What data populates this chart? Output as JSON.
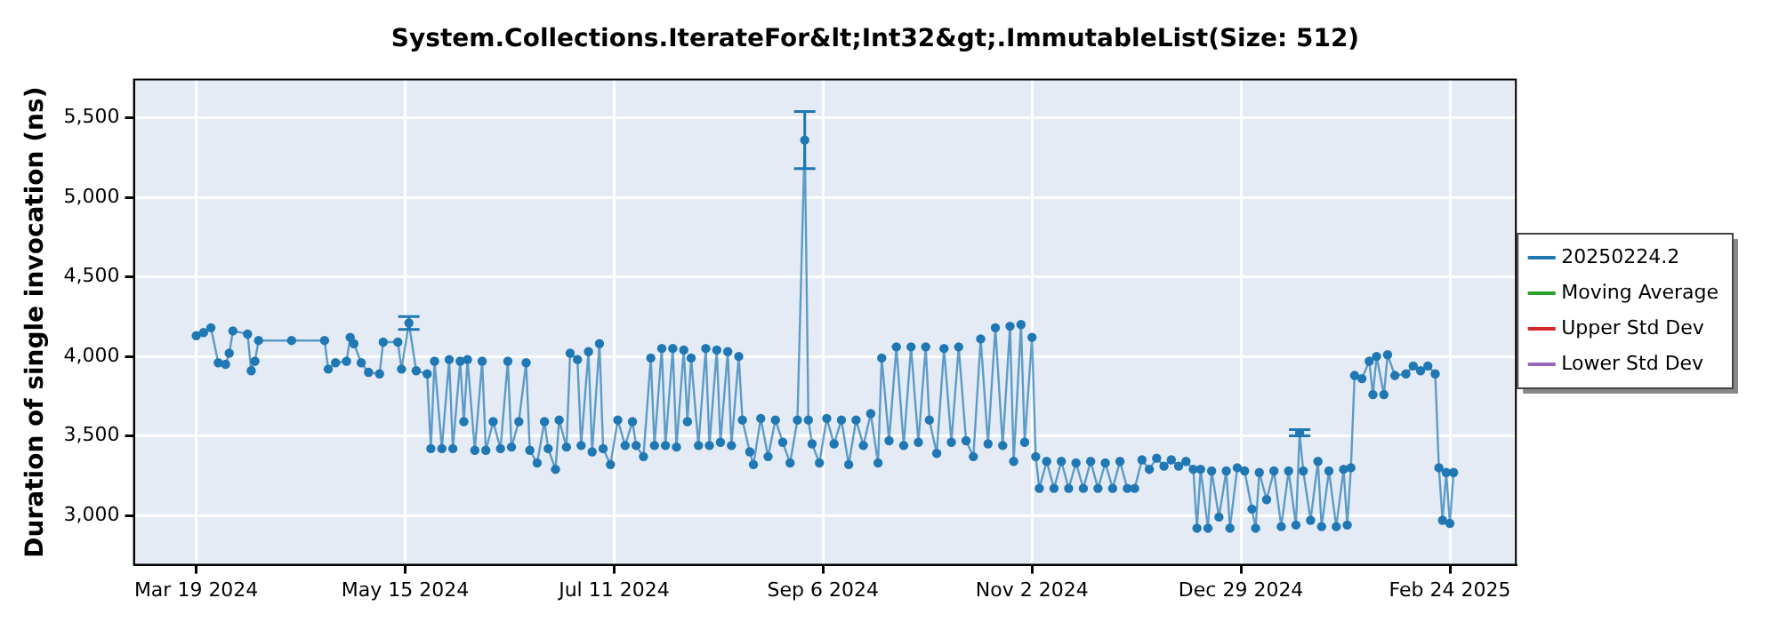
{
  "chart_data": {
    "type": "line",
    "title": "System.Collections.IterateFor&lt;Int32&gt;.ImmutableList(Size: 512)",
    "ylabel": "Duration of single invocation (ns)",
    "xlim": [
      "2024-03-02",
      "2025-03-14"
    ],
    "xticks": [
      {
        "value": "2024-03-19",
        "label": "Mar 19 2024"
      },
      {
        "value": "2024-05-15",
        "label": "May 15 2024"
      },
      {
        "value": "2024-07-11",
        "label": "Jul 11 2024"
      },
      {
        "value": "2024-09-06",
        "label": "Sep 6 2024"
      },
      {
        "value": "2024-11-02",
        "label": "Nov 2 2024"
      },
      {
        "value": "2024-12-29",
        "label": "Dec 29 2024"
      },
      {
        "value": "2025-02-24",
        "label": "Feb 24 2025"
      }
    ],
    "ylim": [
      2690,
      5740
    ],
    "yticks": [
      {
        "value": 3000,
        "label": "3,000"
      },
      {
        "value": 3500,
        "label": "3,500"
      },
      {
        "value": 4000,
        "label": "4,000"
      },
      {
        "value": 4500,
        "label": "4,500"
      },
      {
        "value": 5000,
        "label": "5,000"
      },
      {
        "value": 5500,
        "label": "5,500"
      }
    ],
    "grid": true,
    "legend": "right",
    "marker": "circle",
    "line_style": "solid",
    "series": [
      {
        "name": "20250224.2",
        "color": "#1f77b4",
        "x": [
          "2024-03-19",
          "2024-03-21",
          "2024-03-23",
          "2024-03-25",
          "2024-03-27",
          "2024-03-28",
          "2024-03-29",
          "2024-04-02",
          "2024-04-03",
          "2024-04-04",
          "2024-04-05",
          "2024-04-14",
          "2024-04-23",
          "2024-04-24",
          "2024-04-26",
          "2024-04-29",
          "2024-04-30",
          "2024-05-01",
          "2024-05-03",
          "2024-05-05",
          "2024-05-08",
          "2024-05-09",
          "2024-05-13",
          "2024-05-14",
          "2024-05-16",
          "2024-05-18",
          "2024-05-21",
          "2024-05-22",
          "2024-05-23",
          "2024-05-25",
          "2024-05-27",
          "2024-05-28",
          "2024-05-30",
          "2024-05-31",
          "2024-06-01",
          "2024-06-03",
          "2024-06-05",
          "2024-06-06",
          "2024-06-08",
          "2024-06-10",
          "2024-06-12",
          "2024-06-13",
          "2024-06-15",
          "2024-06-17",
          "2024-06-18",
          "2024-06-20",
          "2024-06-22",
          "2024-06-23",
          "2024-06-25",
          "2024-06-26",
          "2024-06-28",
          "2024-06-29",
          "2024-07-01",
          "2024-07-02",
          "2024-07-04",
          "2024-07-05",
          "2024-07-07",
          "2024-07-08",
          "2024-07-10",
          "2024-07-12",
          "2024-07-14",
          "2024-07-16",
          "2024-07-17",
          "2024-07-19",
          "2024-07-21",
          "2024-07-22",
          "2024-07-24",
          "2024-07-25",
          "2024-07-27",
          "2024-07-28",
          "2024-07-30",
          "2024-07-31",
          "2024-08-01",
          "2024-08-03",
          "2024-08-05",
          "2024-08-06",
          "2024-08-08",
          "2024-08-09",
          "2024-08-11",
          "2024-08-12",
          "2024-08-14",
          "2024-08-15",
          "2024-08-17",
          "2024-08-18",
          "2024-08-20",
          "2024-08-22",
          "2024-08-24",
          "2024-08-26",
          "2024-08-28",
          "2024-08-30",
          "2024-09-01",
          "2024-09-02",
          "2024-09-03",
          "2024-09-05",
          "2024-09-07",
          "2024-09-09",
          "2024-09-11",
          "2024-09-13",
          "2024-09-15",
          "2024-09-17",
          "2024-09-19",
          "2024-09-21",
          "2024-09-22",
          "2024-09-24",
          "2024-09-26",
          "2024-09-28",
          "2024-09-30",
          "2024-10-02",
          "2024-10-04",
          "2024-10-05",
          "2024-10-07",
          "2024-10-09",
          "2024-10-11",
          "2024-10-13",
          "2024-10-15",
          "2024-10-17",
          "2024-10-19",
          "2024-10-21",
          "2024-10-23",
          "2024-10-25",
          "2024-10-27",
          "2024-10-28",
          "2024-10-30",
          "2024-10-31",
          "2024-11-02",
          "2024-11-03",
          "2024-11-04",
          "2024-11-06",
          "2024-11-08",
          "2024-11-10",
          "2024-11-12",
          "2024-11-14",
          "2024-11-16",
          "2024-11-18",
          "2024-11-20",
          "2024-11-22",
          "2024-11-24",
          "2024-11-26",
          "2024-11-28",
          "2024-11-30",
          "2024-12-02",
          "2024-12-04",
          "2024-12-06",
          "2024-12-08",
          "2024-12-10",
          "2024-12-12",
          "2024-12-14",
          "2024-12-16",
          "2024-12-17",
          "2024-12-18",
          "2024-12-20",
          "2024-12-21",
          "2024-12-23",
          "2024-12-25",
          "2024-12-26",
          "2024-12-28",
          "2024-12-30",
          "2025-01-01",
          "2025-01-02",
          "2025-01-03",
          "2025-01-05",
          "2025-01-07",
          "2025-01-09",
          "2025-01-11",
          "2025-01-13",
          "2025-01-14",
          "2025-01-15",
          "2025-01-17",
          "2025-01-19",
          "2025-01-20",
          "2025-01-22",
          "2025-01-24",
          "2025-01-26",
          "2025-01-27",
          "2025-01-28",
          "2025-01-29",
          "2025-01-31",
          "2025-02-02",
          "2025-02-03",
          "2025-02-04",
          "2025-02-06",
          "2025-02-07",
          "2025-02-09",
          "2025-02-12",
          "2025-02-14",
          "2025-02-16",
          "2025-02-18",
          "2025-02-20",
          "2025-02-21",
          "2025-02-22",
          "2025-02-23",
          "2025-02-24",
          "2025-02-25"
        ],
        "values": [
          4130,
          4150,
          4180,
          3960,
          3950,
          4020,
          4160,
          4140,
          3910,
          3970,
          4100,
          4100,
          4100,
          3920,
          3960,
          3970,
          4120,
          4080,
          3960,
          3900,
          3890,
          4090,
          4090,
          3920,
          4210,
          3910,
          3890,
          3420,
          3970,
          3420,
          3980,
          3420,
          3970,
          3590,
          3980,
          3410,
          3970,
          3410,
          3590,
          3420,
          3970,
          3430,
          3590,
          3960,
          3410,
          3330,
          3590,
          3420,
          3290,
          3600,
          3430,
          4020,
          3980,
          3440,
          4030,
          3400,
          4080,
          3420,
          3320,
          3600,
          3440,
          3590,
          3440,
          3370,
          3990,
          3440,
          4050,
          3440,
          4050,
          3430,
          4040,
          3590,
          3990,
          3440,
          4050,
          3440,
          4040,
          3460,
          4030,
          3440,
          4000,
          3600,
          3400,
          3320,
          3610,
          3370,
          3600,
          3460,
          3330,
          3600,
          5360,
          3600,
          3450,
          3330,
          3610,
          3450,
          3600,
          3320,
          3600,
          3440,
          3640,
          3330,
          3990,
          3470,
          4060,
          3440,
          4060,
          3460,
          4060,
          3600,
          3390,
          4050,
          3460,
          4060,
          3470,
          3370,
          4110,
          3450,
          4180,
          3440,
          4190,
          3340,
          4200,
          3460,
          4120,
          3370,
          3170,
          3340,
          3170,
          3340,
          3170,
          3330,
          3170,
          3340,
          3170,
          3330,
          3170,
          3340,
          3170,
          3170,
          3350,
          3290,
          3360,
          3310,
          3350,
          3310,
          3340,
          3290,
          2920,
          3290,
          2920,
          3280,
          2990,
          3280,
          2920,
          3300,
          3280,
          3040,
          2920,
          3270,
          3100,
          3280,
          2930,
          3280,
          2940,
          3520,
          3280,
          2970,
          3340,
          2930,
          3280,
          2930,
          3290,
          2940,
          3300,
          3880,
          3860,
          3970,
          3760,
          4000,
          3760,
          4010,
          3880,
          3890,
          3940,
          3910,
          3940,
          3890,
          3300,
          2970,
          3270,
          2950,
          3270
        ],
        "errors": [
          null,
          null,
          null,
          null,
          null,
          null,
          null,
          null,
          null,
          null,
          null,
          null,
          null,
          null,
          null,
          null,
          null,
          null,
          null,
          null,
          null,
          null,
          null,
          null,
          [
            4170,
            4250
          ],
          null,
          null,
          null,
          null,
          null,
          null,
          null,
          null,
          null,
          null,
          null,
          null,
          null,
          null,
          null,
          null,
          null,
          null,
          null,
          null,
          null,
          null,
          null,
          null,
          null,
          null,
          null,
          null,
          null,
          null,
          null,
          null,
          null,
          null,
          null,
          null,
          null,
          null,
          null,
          null,
          null,
          null,
          null,
          null,
          null,
          null,
          null,
          null,
          null,
          null,
          null,
          null,
          null,
          null,
          null,
          null,
          null,
          null,
          null,
          null,
          null,
          null,
          null,
          null,
          null,
          [
            5180,
            5540
          ],
          null,
          null,
          null,
          null,
          null,
          null,
          null,
          null,
          null,
          null,
          null,
          null,
          null,
          null,
          null,
          null,
          null,
          null,
          null,
          null,
          null,
          null,
          null,
          null,
          null,
          null,
          null,
          null,
          null,
          null,
          null,
          null,
          null,
          null,
          null,
          null,
          null,
          null,
          null,
          null,
          null,
          null,
          null,
          null,
          null,
          null,
          null,
          null,
          null,
          null,
          null,
          null,
          null,
          null,
          null,
          null,
          null,
          null,
          null,
          null,
          null,
          null,
          null,
          null,
          null,
          null,
          null,
          null,
          null,
          null,
          null,
          null,
          null,
          null,
          [
            3500,
            3540
          ],
          null,
          null,
          null,
          null,
          null,
          null,
          null,
          null,
          null,
          null,
          null,
          null,
          null,
          null,
          null,
          null,
          null,
          null,
          null,
          null,
          null,
          null,
          null,
          null,
          null,
          null,
          null
        ]
      },
      {
        "name": "Moving Average",
        "color": "#2ca02c"
      },
      {
        "name": "Upper Std Dev",
        "color": "#d62728"
      },
      {
        "name": "Lower Std Dev",
        "color": "#9467bd"
      }
    ]
  }
}
